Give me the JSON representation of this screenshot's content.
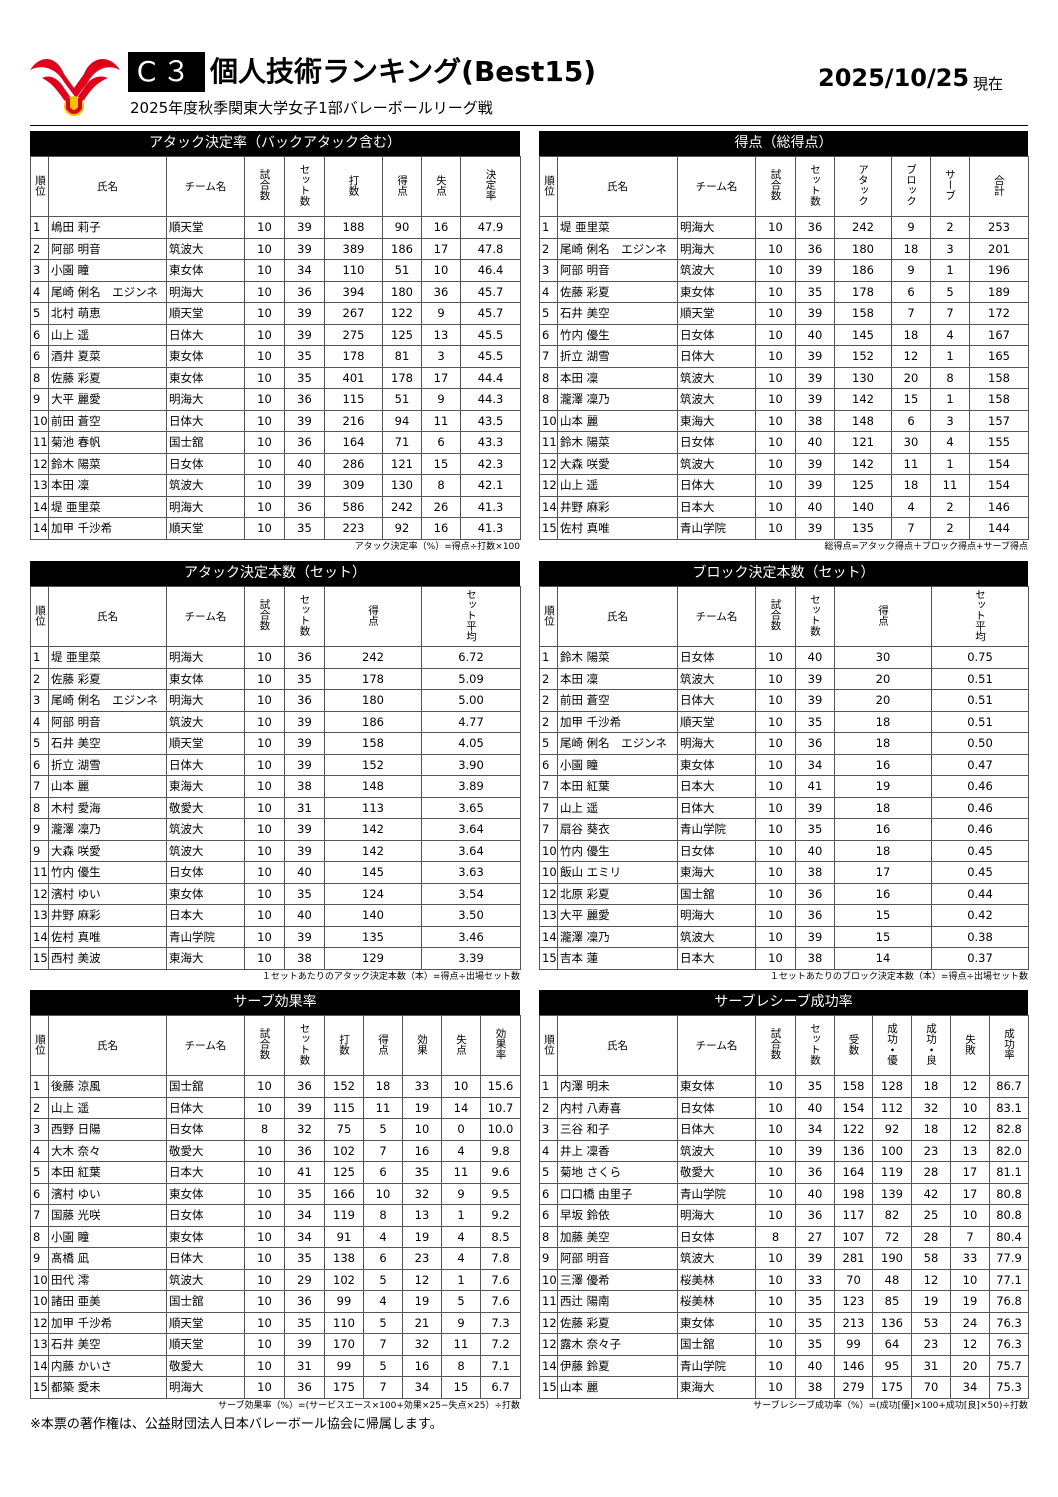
{
  "header": {
    "code": "C３",
    "title": "個人技術ランキング(Best15)",
    "date": "2025/10/25",
    "date_suffix": "現在",
    "subtitle": "2025年度秋季関東大学女子1部バレーボールリーグ戦"
  },
  "sections": [
    {
      "title": "アタック決定率（バックアタック含む）",
      "columns": [
        "順位",
        "氏名",
        "チーム名",
        "試合数",
        "セット数",
        "打数",
        "得点",
        "失点",
        "決定率"
      ],
      "rows": [
        [
          "1",
          "嶋田 莉子",
          "順天堂",
          "10",
          "39",
          "188",
          "90",
          "16",
          "47.9"
        ],
        [
          "2",
          "阿部 明音",
          "筑波大",
          "10",
          "39",
          "389",
          "186",
          "17",
          "47.8"
        ],
        [
          "3",
          "小園 瞳",
          "東女体",
          "10",
          "34",
          "110",
          "51",
          "10",
          "46.4"
        ],
        [
          "4",
          "尾崎 俐名　エジンネ",
          "明海大",
          "10",
          "36",
          "394",
          "180",
          "36",
          "45.7"
        ],
        [
          "5",
          "北村 萌恵",
          "順天堂",
          "10",
          "39",
          "267",
          "122",
          "9",
          "45.7"
        ],
        [
          "6",
          "山上 遥",
          "日体大",
          "10",
          "39",
          "275",
          "125",
          "13",
          "45.5"
        ],
        [
          "6",
          "酒井 夏菜",
          "東女体",
          "10",
          "35",
          "178",
          "81",
          "3",
          "45.5"
        ],
        [
          "8",
          "佐藤 彩夏",
          "東女体",
          "10",
          "35",
          "401",
          "178",
          "17",
          "44.4"
        ],
        [
          "9",
          "大平 麗愛",
          "明海大",
          "10",
          "36",
          "115",
          "51",
          "9",
          "44.3"
        ],
        [
          "10",
          "前田 蒼空",
          "日体大",
          "10",
          "39",
          "216",
          "94",
          "11",
          "43.5"
        ],
        [
          "11",
          "菊池 春帆",
          "国士舘",
          "10",
          "36",
          "164",
          "71",
          "6",
          "43.3"
        ],
        [
          "12",
          "鈴木 陽菜",
          "日女体",
          "10",
          "40",
          "286",
          "121",
          "15",
          "42.3"
        ],
        [
          "13",
          "本田 凜",
          "筑波大",
          "10",
          "39",
          "309",
          "130",
          "8",
          "42.1"
        ],
        [
          "14",
          "堤 亜里菜",
          "明海大",
          "10",
          "36",
          "586",
          "242",
          "26",
          "41.3"
        ],
        [
          "14",
          "加甲 千沙希",
          "順天堂",
          "10",
          "35",
          "223",
          "92",
          "16",
          "41.3"
        ]
      ],
      "note": "アタック決定率（%）=得点÷打数×100"
    },
    {
      "title": "得点（総得点）",
      "columns": [
        "順位",
        "氏名",
        "チーム名",
        "試合数",
        "セット数",
        "アタック",
        "ブロック",
        "サーブ",
        "合計"
      ],
      "rows": [
        [
          "1",
          "堤 亜里菜",
          "明海大",
          "10",
          "36",
          "242",
          "9",
          "2",
          "253"
        ],
        [
          "2",
          "尾崎 俐名　エジンネ",
          "明海大",
          "10",
          "36",
          "180",
          "18",
          "3",
          "201"
        ],
        [
          "3",
          "阿部 明音",
          "筑波大",
          "10",
          "39",
          "186",
          "9",
          "1",
          "196"
        ],
        [
          "4",
          "佐藤 彩夏",
          "東女体",
          "10",
          "35",
          "178",
          "6",
          "5",
          "189"
        ],
        [
          "5",
          "石井 美空",
          "順天堂",
          "10",
          "39",
          "158",
          "7",
          "7",
          "172"
        ],
        [
          "6",
          "竹内 優生",
          "日女体",
          "10",
          "40",
          "145",
          "18",
          "4",
          "167"
        ],
        [
          "7",
          "折立 湖雪",
          "日体大",
          "10",
          "39",
          "152",
          "12",
          "1",
          "165"
        ],
        [
          "8",
          "本田 凜",
          "筑波大",
          "10",
          "39",
          "130",
          "20",
          "8",
          "158"
        ],
        [
          "8",
          "瀧澤 凜乃",
          "筑波大",
          "10",
          "39",
          "142",
          "15",
          "1",
          "158"
        ],
        [
          "10",
          "山本 麗",
          "東海大",
          "10",
          "38",
          "148",
          "6",
          "3",
          "157"
        ],
        [
          "11",
          "鈴木 陽菜",
          "日女体",
          "10",
          "40",
          "121",
          "30",
          "4",
          "155"
        ],
        [
          "12",
          "大森 咲愛",
          "筑波大",
          "10",
          "39",
          "142",
          "11",
          "1",
          "154"
        ],
        [
          "12",
          "山上 遥",
          "日体大",
          "10",
          "39",
          "125",
          "18",
          "11",
          "154"
        ],
        [
          "14",
          "井野 麻彩",
          "日本大",
          "10",
          "40",
          "140",
          "4",
          "2",
          "146"
        ],
        [
          "15",
          "佐村 真唯",
          "青山学院",
          "10",
          "39",
          "135",
          "7",
          "2",
          "144"
        ]
      ],
      "note": "総得点=アタック得点＋ブロック得点+サーブ得点"
    },
    {
      "title": "アタック決定本数（セット）",
      "columns": [
        "順位",
        "氏名",
        "チーム名",
        "試合数",
        "セット数",
        "得点",
        "セット平均"
      ],
      "rows": [
        [
          "1",
          "堤 亜里菜",
          "明海大",
          "10",
          "36",
          "242",
          "6.72"
        ],
        [
          "2",
          "佐藤 彩夏",
          "東女体",
          "10",
          "35",
          "178",
          "5.09"
        ],
        [
          "3",
          "尾崎 俐名　エジンネ",
          "明海大",
          "10",
          "36",
          "180",
          "5.00"
        ],
        [
          "4",
          "阿部 明音",
          "筑波大",
          "10",
          "39",
          "186",
          "4.77"
        ],
        [
          "5",
          "石井 美空",
          "順天堂",
          "10",
          "39",
          "158",
          "4.05"
        ],
        [
          "6",
          "折立 湖雪",
          "日体大",
          "10",
          "39",
          "152",
          "3.90"
        ],
        [
          "7",
          "山本 麗",
          "東海大",
          "10",
          "38",
          "148",
          "3.89"
        ],
        [
          "8",
          "木村 愛海",
          "敬愛大",
          "10",
          "31",
          "113",
          "3.65"
        ],
        [
          "9",
          "瀧澤 凜乃",
          "筑波大",
          "10",
          "39",
          "142",
          "3.64"
        ],
        [
          "9",
          "大森 咲愛",
          "筑波大",
          "10",
          "39",
          "142",
          "3.64"
        ],
        [
          "11",
          "竹内 優生",
          "日女体",
          "10",
          "40",
          "145",
          "3.63"
        ],
        [
          "12",
          "濱村 ゆい",
          "東女体",
          "10",
          "35",
          "124",
          "3.54"
        ],
        [
          "13",
          "井野 麻彩",
          "日本大",
          "10",
          "40",
          "140",
          "3.50"
        ],
        [
          "14",
          "佐村 真唯",
          "青山学院",
          "10",
          "39",
          "135",
          "3.46"
        ],
        [
          "15",
          "西村 美波",
          "東海大",
          "10",
          "38",
          "129",
          "3.39"
        ]
      ],
      "note": "１セットあたりのアタック決定本数（本）=得点÷出場セット数"
    },
    {
      "title": "ブロック決定本数（セット）",
      "columns": [
        "順位",
        "氏名",
        "チーム名",
        "試合数",
        "セット数",
        "得点",
        "セット平均"
      ],
      "rows": [
        [
          "1",
          "鈴木 陽菜",
          "日女体",
          "10",
          "40",
          "30",
          "0.75"
        ],
        [
          "2",
          "本田 凜",
          "筑波大",
          "10",
          "39",
          "20",
          "0.51"
        ],
        [
          "2",
          "前田 蒼空",
          "日体大",
          "10",
          "39",
          "20",
          "0.51"
        ],
        [
          "2",
          "加甲 千沙希",
          "順天堂",
          "10",
          "35",
          "18",
          "0.51"
        ],
        [
          "5",
          "尾崎 俐名　エジンネ",
          "明海大",
          "10",
          "36",
          "18",
          "0.50"
        ],
        [
          "6",
          "小園 瞳",
          "東女体",
          "10",
          "34",
          "16",
          "0.47"
        ],
        [
          "7",
          "本田 紅葉",
          "日本大",
          "10",
          "41",
          "19",
          "0.46"
        ],
        [
          "7",
          "山上 遥",
          "日体大",
          "10",
          "39",
          "18",
          "0.46"
        ],
        [
          "7",
          "扇谷 葵衣",
          "青山学院",
          "10",
          "35",
          "16",
          "0.46"
        ],
        [
          "10",
          "竹内 優生",
          "日女体",
          "10",
          "40",
          "18",
          "0.45"
        ],
        [
          "10",
          "飯山 エミリ",
          "東海大",
          "10",
          "38",
          "17",
          "0.45"
        ],
        [
          "12",
          "北原 彩夏",
          "国士舘",
          "10",
          "36",
          "16",
          "0.44"
        ],
        [
          "13",
          "大平 麗愛",
          "明海大",
          "10",
          "36",
          "15",
          "0.42"
        ],
        [
          "14",
          "瀧澤 凜乃",
          "筑波大",
          "10",
          "39",
          "15",
          "0.38"
        ],
        [
          "15",
          "吉本 蓮",
          "日本大",
          "10",
          "38",
          "14",
          "0.37"
        ]
      ],
      "note": "１セットあたりのブロック決定本数（本）=得点÷出場セット数"
    },
    {
      "title": "サーブ効果率",
      "columns": [
        "順位",
        "氏名",
        "チーム名",
        "試合数",
        "セット数",
        "打数",
        "得点",
        "効果",
        "失点",
        "効果率"
      ],
      "rows": [
        [
          "1",
          "後藤 涼風",
          "国士舘",
          "10",
          "36",
          "152",
          "18",
          "33",
          "10",
          "15.6"
        ],
        [
          "2",
          "山上 遥",
          "日体大",
          "10",
          "39",
          "115",
          "11",
          "19",
          "14",
          "10.7"
        ],
        [
          "3",
          "西野 日陽",
          "日女体",
          "8",
          "32",
          "75",
          "5",
          "10",
          "0",
          "10.0"
        ],
        [
          "4",
          "大木 奈々",
          "敬愛大",
          "10",
          "36",
          "102",
          "7",
          "16",
          "4",
          "9.8"
        ],
        [
          "5",
          "本田 紅葉",
          "日本大",
          "10",
          "41",
          "125",
          "6",
          "35",
          "11",
          "9.6"
        ],
        [
          "6",
          "濱村 ゆい",
          "東女体",
          "10",
          "35",
          "166",
          "10",
          "32",
          "9",
          "9.5"
        ],
        [
          "7",
          "国藤 光咲",
          "日女体",
          "10",
          "34",
          "119",
          "8",
          "13",
          "1",
          "9.2"
        ],
        [
          "8",
          "小園 瞳",
          "東女体",
          "10",
          "34",
          "91",
          "4",
          "19",
          "4",
          "8.5"
        ],
        [
          "9",
          "髙橋 凪",
          "日体大",
          "10",
          "35",
          "138",
          "6",
          "23",
          "4",
          "7.8"
        ],
        [
          "10",
          "田代 澪",
          "筑波大",
          "10",
          "29",
          "102",
          "5",
          "12",
          "1",
          "7.6"
        ],
        [
          "10",
          "諸田 亜美",
          "国士舘",
          "10",
          "36",
          "99",
          "4",
          "19",
          "5",
          "7.6"
        ],
        [
          "12",
          "加甲 千沙希",
          "順天堂",
          "10",
          "35",
          "110",
          "5",
          "21",
          "9",
          "7.3"
        ],
        [
          "13",
          "石井 美空",
          "順天堂",
          "10",
          "39",
          "170",
          "7",
          "32",
          "11",
          "7.2"
        ],
        [
          "14",
          "内藤 かいさ",
          "敬愛大",
          "10",
          "31",
          "99",
          "5",
          "16",
          "8",
          "7.1"
        ],
        [
          "15",
          "都築 愛未",
          "明海大",
          "10",
          "36",
          "175",
          "7",
          "34",
          "15",
          "6.7"
        ]
      ],
      "note": "サーブ効果率（%）=(サービスエース×100+効果×25−失点×25）÷打数"
    },
    {
      "title": "サーブレシーブ成功率",
      "columns": [
        "順位",
        "氏名",
        "チーム名",
        "試合数",
        "セット数",
        "受数",
        "成功・優",
        "成功・良",
        "失敗",
        "成功率"
      ],
      "rows": [
        [
          "1",
          "内澤 明未",
          "東女体",
          "10",
          "35",
          "158",
          "128",
          "18",
          "12",
          "86.7"
        ],
        [
          "2",
          "内村 八寿喜",
          "日女体",
          "10",
          "40",
          "154",
          "112",
          "32",
          "10",
          "83.1"
        ],
        [
          "3",
          "三谷 和子",
          "日体大",
          "10",
          "34",
          "122",
          "92",
          "18",
          "12",
          "82.8"
        ],
        [
          "4",
          "井上 凜香",
          "筑波大",
          "10",
          "39",
          "136",
          "100",
          "23",
          "13",
          "82.0"
        ],
        [
          "5",
          "菊地 さくら",
          "敬愛大",
          "10",
          "36",
          "164",
          "119",
          "28",
          "17",
          "81.1"
        ],
        [
          "6",
          "口口橋 由里子",
          "青山学院",
          "10",
          "40",
          "198",
          "139",
          "42",
          "17",
          "80.8"
        ],
        [
          "6",
          "早坂 鈴依",
          "明海大",
          "10",
          "36",
          "117",
          "82",
          "25",
          "10",
          "80.8"
        ],
        [
          "8",
          "加藤 美空",
          "日女体",
          "8",
          "27",
          "107",
          "72",
          "28",
          "7",
          "80.4"
        ],
        [
          "9",
          "阿部 明音",
          "筑波大",
          "10",
          "39",
          "281",
          "190",
          "58",
          "33",
          "77.9"
        ],
        [
          "10",
          "三澤 優希",
          "桜美林",
          "10",
          "33",
          "70",
          "48",
          "12",
          "10",
          "77.1"
        ],
        [
          "11",
          "西辻 陽南",
          "桜美林",
          "10",
          "35",
          "123",
          "85",
          "19",
          "19",
          "76.8"
        ],
        [
          "12",
          "佐藤 彩夏",
          "東女体",
          "10",
          "35",
          "213",
          "136",
          "53",
          "24",
          "76.3"
        ],
        [
          "12",
          "露木 奈々子",
          "国士舘",
          "10",
          "35",
          "99",
          "64",
          "23",
          "12",
          "76.3"
        ],
        [
          "14",
          "伊藤 鈴夏",
          "青山学院",
          "10",
          "40",
          "146",
          "95",
          "31",
          "20",
          "75.7"
        ],
        [
          "15",
          "山本 麗",
          "東海大",
          "10",
          "38",
          "279",
          "175",
          "70",
          "34",
          "75.3"
        ]
      ],
      "note": "サーブレシーブ成功率（%）=(成功[優]×100+成功[良]×50)÷打数"
    }
  ],
  "footer": {
    "copyright": "※本票の著作権は、公益財団法人日本バレーボール協会に帰属します。"
  }
}
